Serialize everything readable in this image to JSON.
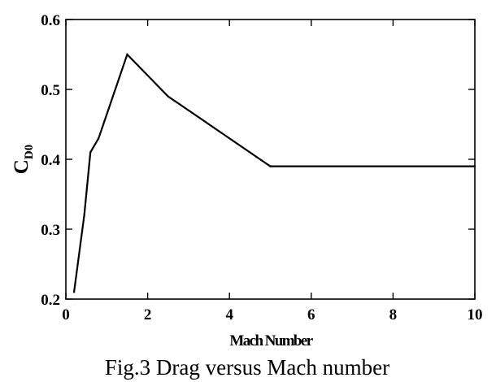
{
  "chart_data": {
    "type": "line",
    "xlabel": "Mach Number",
    "ylabel": {
      "main": "C",
      "subscript": "D0"
    },
    "caption": "Fig.3 Drag versus Mach number",
    "xlim": [
      0,
      10
    ],
    "ylim": [
      0.2,
      0.6
    ],
    "x_ticks": [
      "0",
      "2",
      "4",
      "6",
      "8",
      "10"
    ],
    "y_ticks": [
      "0.2",
      "0.3",
      "0.4",
      "0.5",
      "0.6"
    ],
    "grid": false,
    "series": [
      {
        "x": [
          0.2,
          0.45,
          0.6,
          0.8,
          1.5,
          2.5,
          5.0,
          10.0
        ],
        "y": [
          0.21,
          0.32,
          0.41,
          0.43,
          0.55,
          0.49,
          0.39,
          0.39
        ],
        "color": "#000000"
      }
    ]
  }
}
